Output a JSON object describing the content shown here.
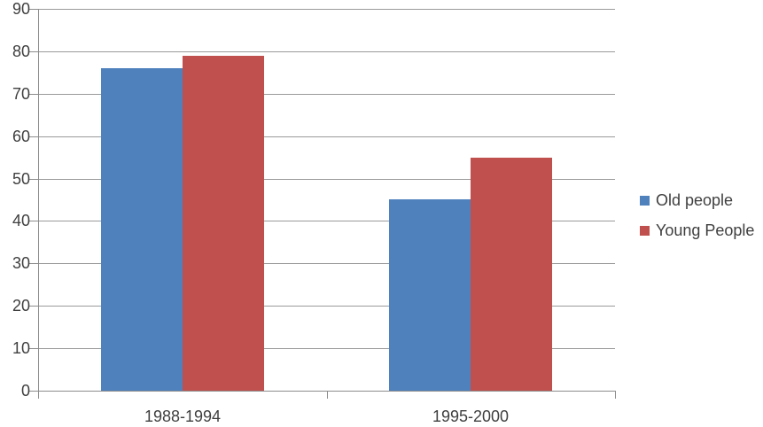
{
  "chart_data": {
    "type": "bar",
    "title": "",
    "xlabel": "",
    "ylabel": "",
    "categories": [
      "1988-1994",
      "1995-2000"
    ],
    "series": [
      {
        "name": "Old people",
        "color": "#4F81BD",
        "values": [
          76,
          45
        ]
      },
      {
        "name": "Young People",
        "color": "#C0504D",
        "values": [
          79,
          55
        ]
      }
    ],
    "ylim": [
      0,
      90
    ],
    "yticks": [
      0,
      10,
      20,
      30,
      40,
      50,
      60,
      70,
      80,
      90
    ],
    "grid": true,
    "legend_position": "right"
  },
  "colors": {
    "background": "#FFFFFF",
    "gridline": "#9A9A9A",
    "axis": "#8C8C8C",
    "text": "#3F3F3F"
  }
}
